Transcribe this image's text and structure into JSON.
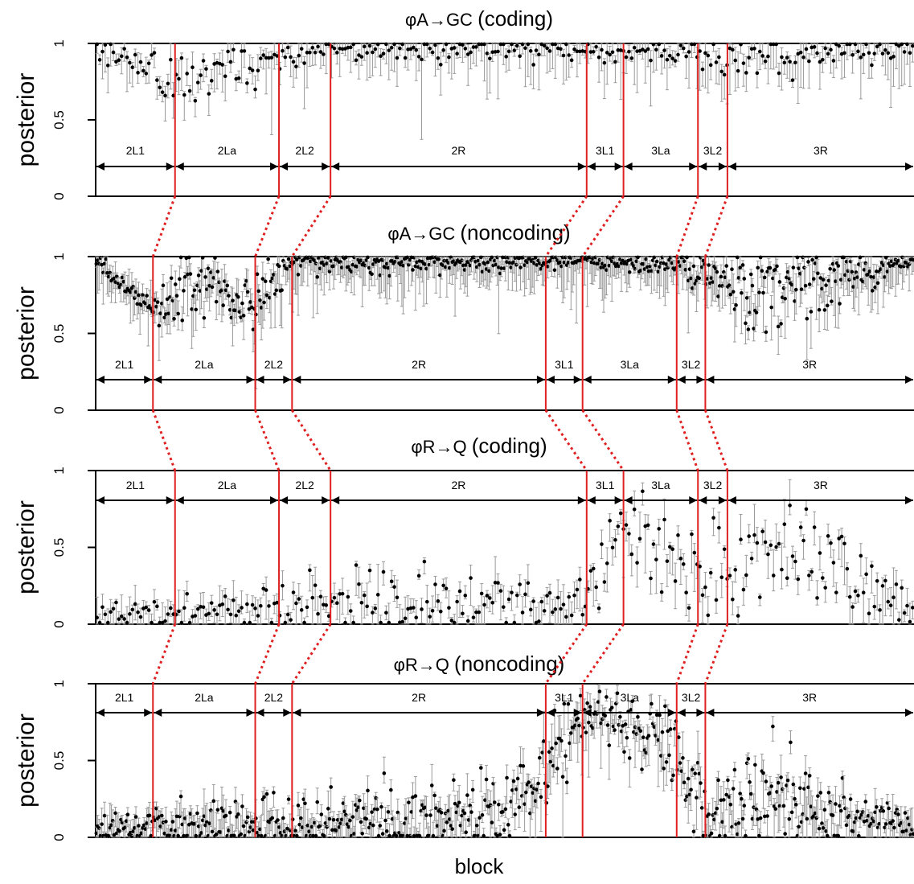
{
  "figure": {
    "xlabel": "block"
  },
  "chart_data": [
    {
      "type": "scatter",
      "title_main": "φA→GC",
      "title_suffix": "(coding)",
      "ylabel": "posterior",
      "ylim": [
        0,
        1
      ],
      "yticks": [
        "0",
        "0.5",
        "1"
      ],
      "legend": "none",
      "segment_labels": [
        "2L1",
        "2La",
        "2L2",
        "2R",
        "3L1",
        "3La",
        "3L2",
        "3R"
      ],
      "boundaries": [
        0.097,
        0.224,
        0.287,
        0.6,
        0.645,
        0.736,
        0.772
      ],
      "series_profile": [
        {
          "x": 0.0,
          "mean": 0.95,
          "sd": 0.04
        },
        {
          "x": 0.1,
          "mean": 0.78,
          "sd": 0.1
        },
        {
          "x": 0.22,
          "mean": 0.9,
          "sd": 0.06
        },
        {
          "x": 0.29,
          "mean": 0.96,
          "sd": 0.04
        },
        {
          "x": 0.6,
          "mean": 0.96,
          "sd": 0.04
        },
        {
          "x": 0.645,
          "mean": 0.95,
          "sd": 0.04
        },
        {
          "x": 0.736,
          "mean": 0.95,
          "sd": 0.05
        },
        {
          "x": 0.772,
          "mean": 0.9,
          "sd": 0.07
        },
        {
          "x": 1.0,
          "mean": 0.96,
          "sd": 0.03
        }
      ],
      "n_points": 300
    },
    {
      "type": "scatter",
      "title_main": "φA→GC",
      "title_suffix": "(noncoding)",
      "ylabel": "posterior",
      "ylim": [
        0,
        1
      ],
      "yticks": [
        "0",
        "0.5",
        "1"
      ],
      "legend": "none",
      "segment_labels": [
        "2L1",
        "2La",
        "2L2",
        "2R",
        "3L1",
        "3La",
        "3L2",
        "3R"
      ],
      "boundaries": [
        0.07,
        0.195,
        0.24,
        0.55,
        0.595,
        0.71,
        0.745
      ],
      "series_profile": [
        {
          "x": 0.0,
          "mean": 0.97,
          "sd": 0.03
        },
        {
          "x": 0.07,
          "mean": 0.65,
          "sd": 0.05
        },
        {
          "x": 0.12,
          "mean": 0.82,
          "sd": 0.12
        },
        {
          "x": 0.195,
          "mean": 0.7,
          "sd": 0.08
        },
        {
          "x": 0.24,
          "mean": 0.96,
          "sd": 0.04
        },
        {
          "x": 0.55,
          "mean": 0.97,
          "sd": 0.03
        },
        {
          "x": 0.71,
          "mean": 0.95,
          "sd": 0.04
        },
        {
          "x": 0.82,
          "mean": 0.78,
          "sd": 0.15
        },
        {
          "x": 1.0,
          "mean": 0.97,
          "sd": 0.02
        }
      ],
      "n_points": 600
    },
    {
      "type": "scatter",
      "title_main": "φR→Q",
      "title_suffix": "(coding)",
      "ylabel": "posterior",
      "ylim": [
        0,
        1
      ],
      "yticks": [
        "0",
        "0.5",
        "1"
      ],
      "legend": "none",
      "segment_labels": [
        "2L1",
        "2La",
        "2L2",
        "2R",
        "3L1",
        "3La",
        "3L2",
        "3R"
      ],
      "boundaries": [
        0.097,
        0.224,
        0.287,
        0.6,
        0.645,
        0.736,
        0.772
      ],
      "series_profile": [
        {
          "x": 0.0,
          "mean": 0.06,
          "sd": 0.05
        },
        {
          "x": 0.29,
          "mean": 0.12,
          "sd": 0.1
        },
        {
          "x": 0.6,
          "mean": 0.12,
          "sd": 0.1
        },
        {
          "x": 0.645,
          "mean": 0.72,
          "sd": 0.15
        },
        {
          "x": 0.736,
          "mean": 0.3,
          "sd": 0.15
        },
        {
          "x": 0.83,
          "mean": 0.55,
          "sd": 0.2
        },
        {
          "x": 1.0,
          "mean": 0.1,
          "sd": 0.07
        }
      ],
      "n_points": 300
    },
    {
      "type": "scatter",
      "title_main": "φR→Q",
      "title_suffix": "(noncoding)",
      "ylabel": "posterior",
      "ylim": [
        0,
        1
      ],
      "yticks": [
        "0",
        "0.5",
        "1"
      ],
      "legend": "none",
      "segment_labels": [
        "2L1",
        "2La",
        "2L2",
        "2R",
        "3L1",
        "3La",
        "3L2",
        "3R"
      ],
      "boundaries": [
        0.07,
        0.195,
        0.24,
        0.55,
        0.595,
        0.71,
        0.745
      ],
      "series_profile": [
        {
          "x": 0.0,
          "mean": 0.05,
          "sd": 0.06
        },
        {
          "x": 0.3,
          "mean": 0.1,
          "sd": 0.12
        },
        {
          "x": 0.5,
          "mean": 0.15,
          "sd": 0.15
        },
        {
          "x": 0.6,
          "mean": 0.8,
          "sd": 0.1
        },
        {
          "x": 0.7,
          "mean": 0.7,
          "sd": 0.15
        },
        {
          "x": 0.745,
          "mean": 0.1,
          "sd": 0.1
        },
        {
          "x": 0.82,
          "mean": 0.3,
          "sd": 0.2
        },
        {
          "x": 1.0,
          "mean": 0.05,
          "sd": 0.05
        }
      ],
      "n_points": 600
    }
  ]
}
